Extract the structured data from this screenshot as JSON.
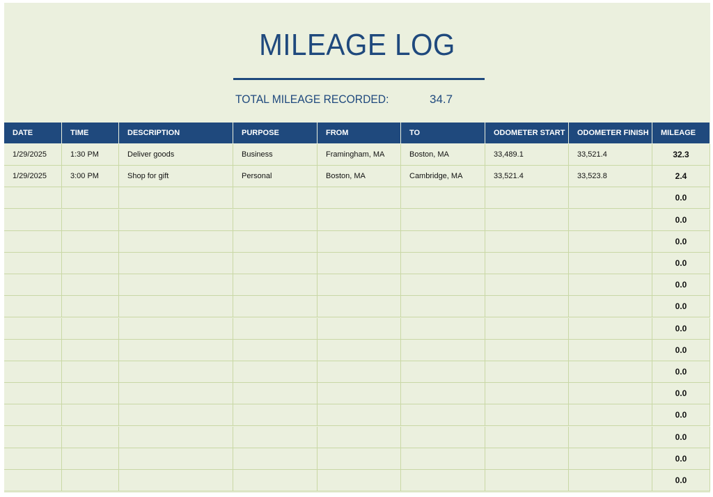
{
  "header": {
    "title": "MILEAGE LOG",
    "total_label": "TOTAL MILEAGE RECORDED:",
    "total_value": "34.7"
  },
  "table": {
    "columns": [
      "DATE",
      "TIME",
      "DESCRIPTION",
      "PURPOSE",
      "FROM",
      "TO",
      "ODOMETER START",
      "ODOMETER FINISH",
      "MILEAGE"
    ],
    "rows": [
      {
        "date": "1/29/2025",
        "time": "1:30 PM",
        "description": "Deliver goods",
        "purpose": "Business",
        "from": "Framingham, MA",
        "to": "Boston, MA",
        "odometer_start": "33,489.1",
        "odometer_finish": "33,521.4",
        "mileage": "32.3"
      },
      {
        "date": "1/29/2025",
        "time": "3:00 PM",
        "description": "Shop for gift",
        "purpose": "Personal",
        "from": "Boston, MA",
        "to": "Cambridge, MA",
        "odometer_start": "33,521.4",
        "odometer_finish": "33,523.8",
        "mileage": "2.4"
      },
      {
        "mileage": "0.0"
      },
      {
        "mileage": "0.0"
      },
      {
        "mileage": "0.0"
      },
      {
        "mileage": "0.0"
      },
      {
        "mileage": "0.0"
      },
      {
        "mileage": "0.0"
      },
      {
        "mileage": "0.0"
      },
      {
        "mileage": "0.0"
      },
      {
        "mileage": "0.0"
      },
      {
        "mileage": "0.0"
      },
      {
        "mileage": "0.0"
      },
      {
        "mileage": "0.0"
      },
      {
        "mileage": "0.0"
      },
      {
        "mileage": "0.0"
      }
    ]
  }
}
